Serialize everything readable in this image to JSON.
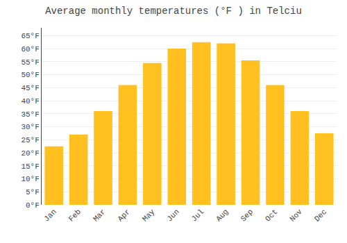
{
  "chart_data": {
    "type": "bar",
    "title": "Average monthly temperatures (°F ) in Telciu",
    "categories": [
      "Jan",
      "Feb",
      "Mar",
      "Apr",
      "May",
      "Jun",
      "Jul",
      "Aug",
      "Sep",
      "Oct",
      "Nov",
      "Dec"
    ],
    "values": [
      22.5,
      27.0,
      36.0,
      46.0,
      54.5,
      60.0,
      62.5,
      62.0,
      55.5,
      46.0,
      36.0,
      27.5
    ],
    "color": "#FFC020",
    "ylim": [
      0,
      68
    ],
    "yticks": [
      {
        "value": 0,
        "label": "0°F"
      },
      {
        "value": 5,
        "label": "5°F"
      },
      {
        "value": 10,
        "label": "10°F"
      },
      {
        "value": 15,
        "label": "15°F"
      },
      {
        "value": 20,
        "label": "20°F"
      },
      {
        "value": 25,
        "label": "25°F"
      },
      {
        "value": 30,
        "label": "30°F"
      },
      {
        "value": 35,
        "label": "35°F"
      },
      {
        "value": 40,
        "label": "40°F"
      },
      {
        "value": 45,
        "label": "45°F"
      },
      {
        "value": 50,
        "label": "50°F"
      },
      {
        "value": 55,
        "label": "55°F"
      },
      {
        "value": 60,
        "label": "60°F"
      },
      {
        "value": 65,
        "label": "65°F"
      }
    ],
    "grid": true
  }
}
